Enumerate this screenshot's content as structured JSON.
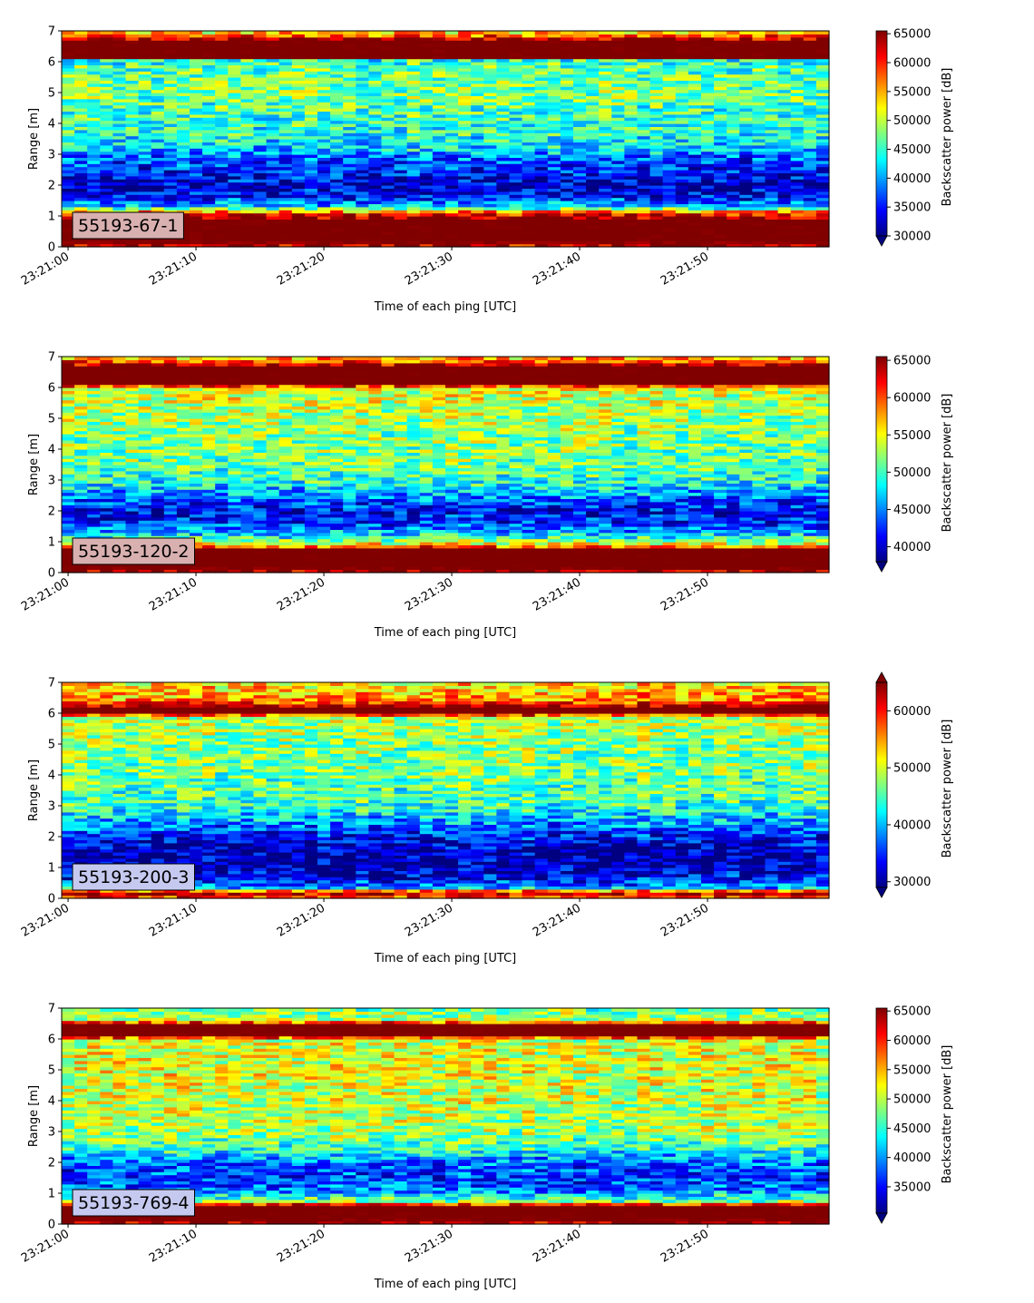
{
  "chart_data": [
    {
      "type": "heatmap",
      "panel_label": "55193-67-1",
      "xlabel": "Time of each ping [UTC]",
      "ylabel": "Range [m]",
      "colorbar_label": "Backscatter power [dB]",
      "colormap": "jet",
      "x_ticks": [
        "23:21:00",
        "23:21:10",
        "23:21:20",
        "23:21:30",
        "23:21:40",
        "23:21:50"
      ],
      "x_range_seconds": [
        -0.5,
        59.5
      ],
      "y_ticks": [
        0,
        1,
        2,
        3,
        4,
        5,
        6,
        7
      ],
      "ylim": [
        0,
        7
      ],
      "vmin": 30000,
      "vmax": 65500,
      "colorbar_ticks": [
        30000,
        35000,
        40000,
        45000,
        50000,
        55000,
        60000,
        65000
      ],
      "colorbar_extend": "min",
      "label_box_color": "#d9b0b0",
      "range_profile": [
        [
          0.0,
          62000
        ],
        [
          0.2,
          66000
        ],
        [
          0.9,
          66000
        ],
        [
          1.1,
          60000
        ],
        [
          1.3,
          42000
        ],
        [
          1.6,
          35000
        ],
        [
          2.0,
          32500
        ],
        [
          2.5,
          35500
        ],
        [
          2.9,
          38000
        ],
        [
          3.2,
          42000
        ],
        [
          3.7,
          44500
        ],
        [
          4.3,
          45500
        ],
        [
          5.0,
          47500
        ],
        [
          5.8,
          46500
        ],
        [
          6.05,
          44500
        ],
        [
          6.15,
          66000
        ],
        [
          6.7,
          66000
        ],
        [
          6.85,
          58000
        ],
        [
          7.0,
          52000
        ]
      ]
    },
    {
      "type": "heatmap",
      "panel_label": "55193-120-2",
      "xlabel": "Time of each ping [UTC]",
      "ylabel": "Range [m]",
      "colorbar_label": "Backscatter power [dB]",
      "colormap": "jet",
      "x_ticks": [
        "23:21:00",
        "23:21:10",
        "23:21:20",
        "23:21:30",
        "23:21:40",
        "23:21:50"
      ],
      "x_range_seconds": [
        -0.5,
        59.5
      ],
      "y_ticks": [
        0,
        1,
        2,
        3,
        4,
        5,
        6,
        7
      ],
      "ylim": [
        0,
        7
      ],
      "vmin": 38000,
      "vmax": 65500,
      "colorbar_ticks": [
        40000,
        45000,
        50000,
        55000,
        60000,
        65000
      ],
      "colorbar_extend": "min",
      "label_box_color": "#d9b0b0",
      "range_profile": [
        [
          0.0,
          64000
        ],
        [
          0.2,
          66000
        ],
        [
          0.75,
          66000
        ],
        [
          0.9,
          56000
        ],
        [
          1.2,
          48000
        ],
        [
          1.6,
          43000
        ],
        [
          2.0,
          41000
        ],
        [
          2.5,
          45000
        ],
        [
          3.0,
          49500
        ],
        [
          3.6,
          51500
        ],
        [
          4.5,
          52000
        ],
        [
          5.5,
          53500
        ],
        [
          6.0,
          54500
        ],
        [
          6.1,
          66000
        ],
        [
          6.7,
          66000
        ],
        [
          6.85,
          60000
        ],
        [
          7.0,
          56000
        ]
      ]
    },
    {
      "type": "heatmap",
      "panel_label": "55193-200-3",
      "xlabel": "Time of each ping [UTC]",
      "ylabel": "Range [m]",
      "colorbar_label": "Backscatter power [dB]",
      "colormap": "jet",
      "x_ticks": [
        "23:21:00",
        "23:21:10",
        "23:21:20",
        "23:21:30",
        "23:21:40",
        "23:21:50"
      ],
      "x_range_seconds": [
        -0.5,
        59.5
      ],
      "y_ticks": [
        0,
        1,
        2,
        3,
        4,
        5,
        6,
        7
      ],
      "ylim": [
        0,
        7
      ],
      "vmin": 29000,
      "vmax": 65000,
      "colorbar_ticks": [
        30000,
        40000,
        50000,
        60000
      ],
      "colorbar_extend": "both",
      "label_box_color": "#c6c9ef",
      "range_profile": [
        [
          0.0,
          56000
        ],
        [
          0.2,
          64000
        ],
        [
          0.35,
          40000
        ],
        [
          0.6,
          34000
        ],
        [
          1.0,
          31000
        ],
        [
          1.5,
          30500
        ],
        [
          2.0,
          34000
        ],
        [
          2.5,
          39000
        ],
        [
          3.0,
          44000
        ],
        [
          4.0,
          46500
        ],
        [
          5.0,
          47500
        ],
        [
          5.9,
          49000
        ],
        [
          6.0,
          66000
        ],
        [
          6.2,
          66000
        ],
        [
          6.4,
          56000
        ],
        [
          7.0,
          52000
        ]
      ]
    },
    {
      "type": "heatmap",
      "panel_label": "55193-769-4",
      "xlabel": "Time of each ping [UTC]",
      "ylabel": "Range [m]",
      "colorbar_label": "Backscatter power [dB]",
      "colormap": "jet",
      "x_ticks": [
        "23:21:00",
        "23:21:10",
        "23:21:20",
        "23:21:30",
        "23:21:40",
        "23:21:50"
      ],
      "x_range_seconds": [
        -0.5,
        59.5
      ],
      "y_ticks": [
        0,
        1,
        2,
        3,
        4,
        5,
        6,
        7
      ],
      "ylim": [
        0,
        7
      ],
      "vmin": 30500,
      "vmax": 65500,
      "colorbar_ticks": [
        35000,
        40000,
        45000,
        50000,
        55000,
        60000,
        65000
      ],
      "colorbar_extend": "min",
      "label_box_color": "#c6c9ef",
      "range_profile": [
        [
          0.0,
          64000
        ],
        [
          0.2,
          66000
        ],
        [
          0.6,
          66000
        ],
        [
          0.75,
          48000
        ],
        [
          1.1,
          39000
        ],
        [
          1.5,
          36500
        ],
        [
          2.0,
          38500
        ],
        [
          2.5,
          45500
        ],
        [
          3.0,
          49000
        ],
        [
          4.0,
          50500
        ],
        [
          5.0,
          51500
        ],
        [
          6.0,
          51000
        ],
        [
          6.1,
          66000
        ],
        [
          6.5,
          66000
        ],
        [
          6.6,
          50000
        ],
        [
          7.0,
          47000
        ]
      ]
    }
  ]
}
